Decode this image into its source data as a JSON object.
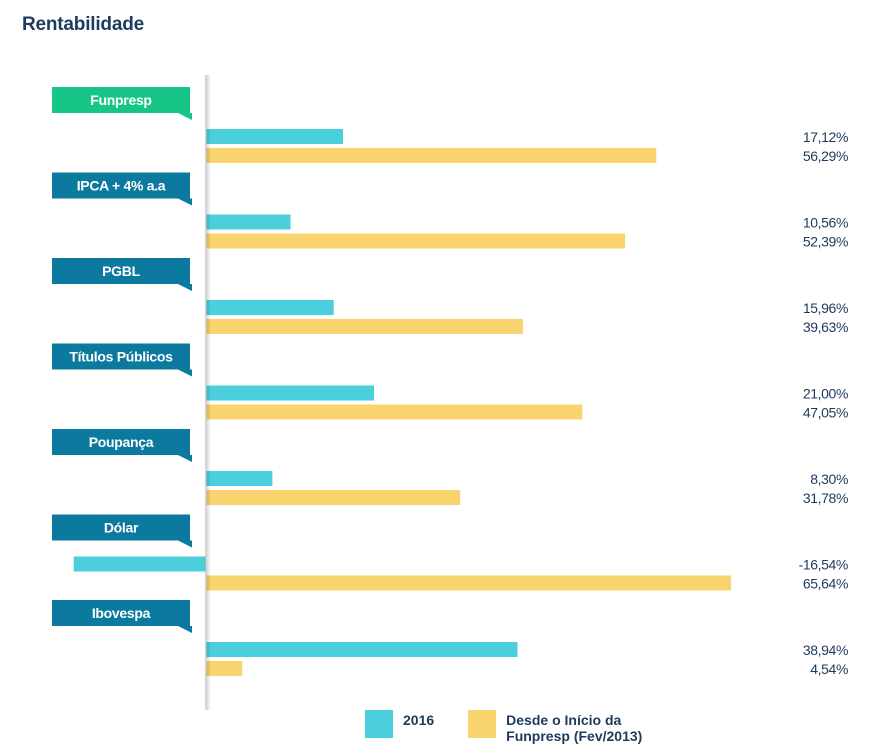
{
  "title": "Rentabilidade",
  "colors": {
    "series_2016": "#4ccfdd",
    "series_inicio": "#f9d36e",
    "label_default": "#0b7a9e",
    "label_highlight": "#17c586",
    "text": "#1e3a5c"
  },
  "chart_data": {
    "type": "bar",
    "orientation": "horizontal",
    "title": "Rentabilidade",
    "categories": [
      "Funpresp",
      "IPCA + 4% a.a",
      "PGBL",
      "Títulos Públicos",
      "Poupança",
      "Dólar",
      "Ibovespa"
    ],
    "highlight_category": "Funpresp",
    "series": [
      {
        "name": "2016",
        "values": [
          17.12,
          10.56,
          15.96,
          21.0,
          8.3,
          -16.54,
          38.94
        ],
        "labels": [
          "17,12%",
          "10,56%",
          "15,96%",
          "21,00%",
          "8,30%",
          "-16,54%",
          "38,94%"
        ]
      },
      {
        "name": "Desde o Início da Funpresp (Fev/2013)",
        "values": [
          56.29,
          52.39,
          39.63,
          47.05,
          31.78,
          65.64,
          4.54
        ],
        "labels": [
          "56,29%",
          "52,39%",
          "39,63%",
          "47,05%",
          "31,78%",
          "65,64%",
          "4,54%"
        ]
      }
    ],
    "legend_position": "bottom",
    "grid": false
  },
  "legend": {
    "items": [
      {
        "label_line1": "2016",
        "label_line2": ""
      },
      {
        "label_line1": "Desde o Início da",
        "label_line2": "Funpresp (Fev/2013)"
      }
    ]
  }
}
